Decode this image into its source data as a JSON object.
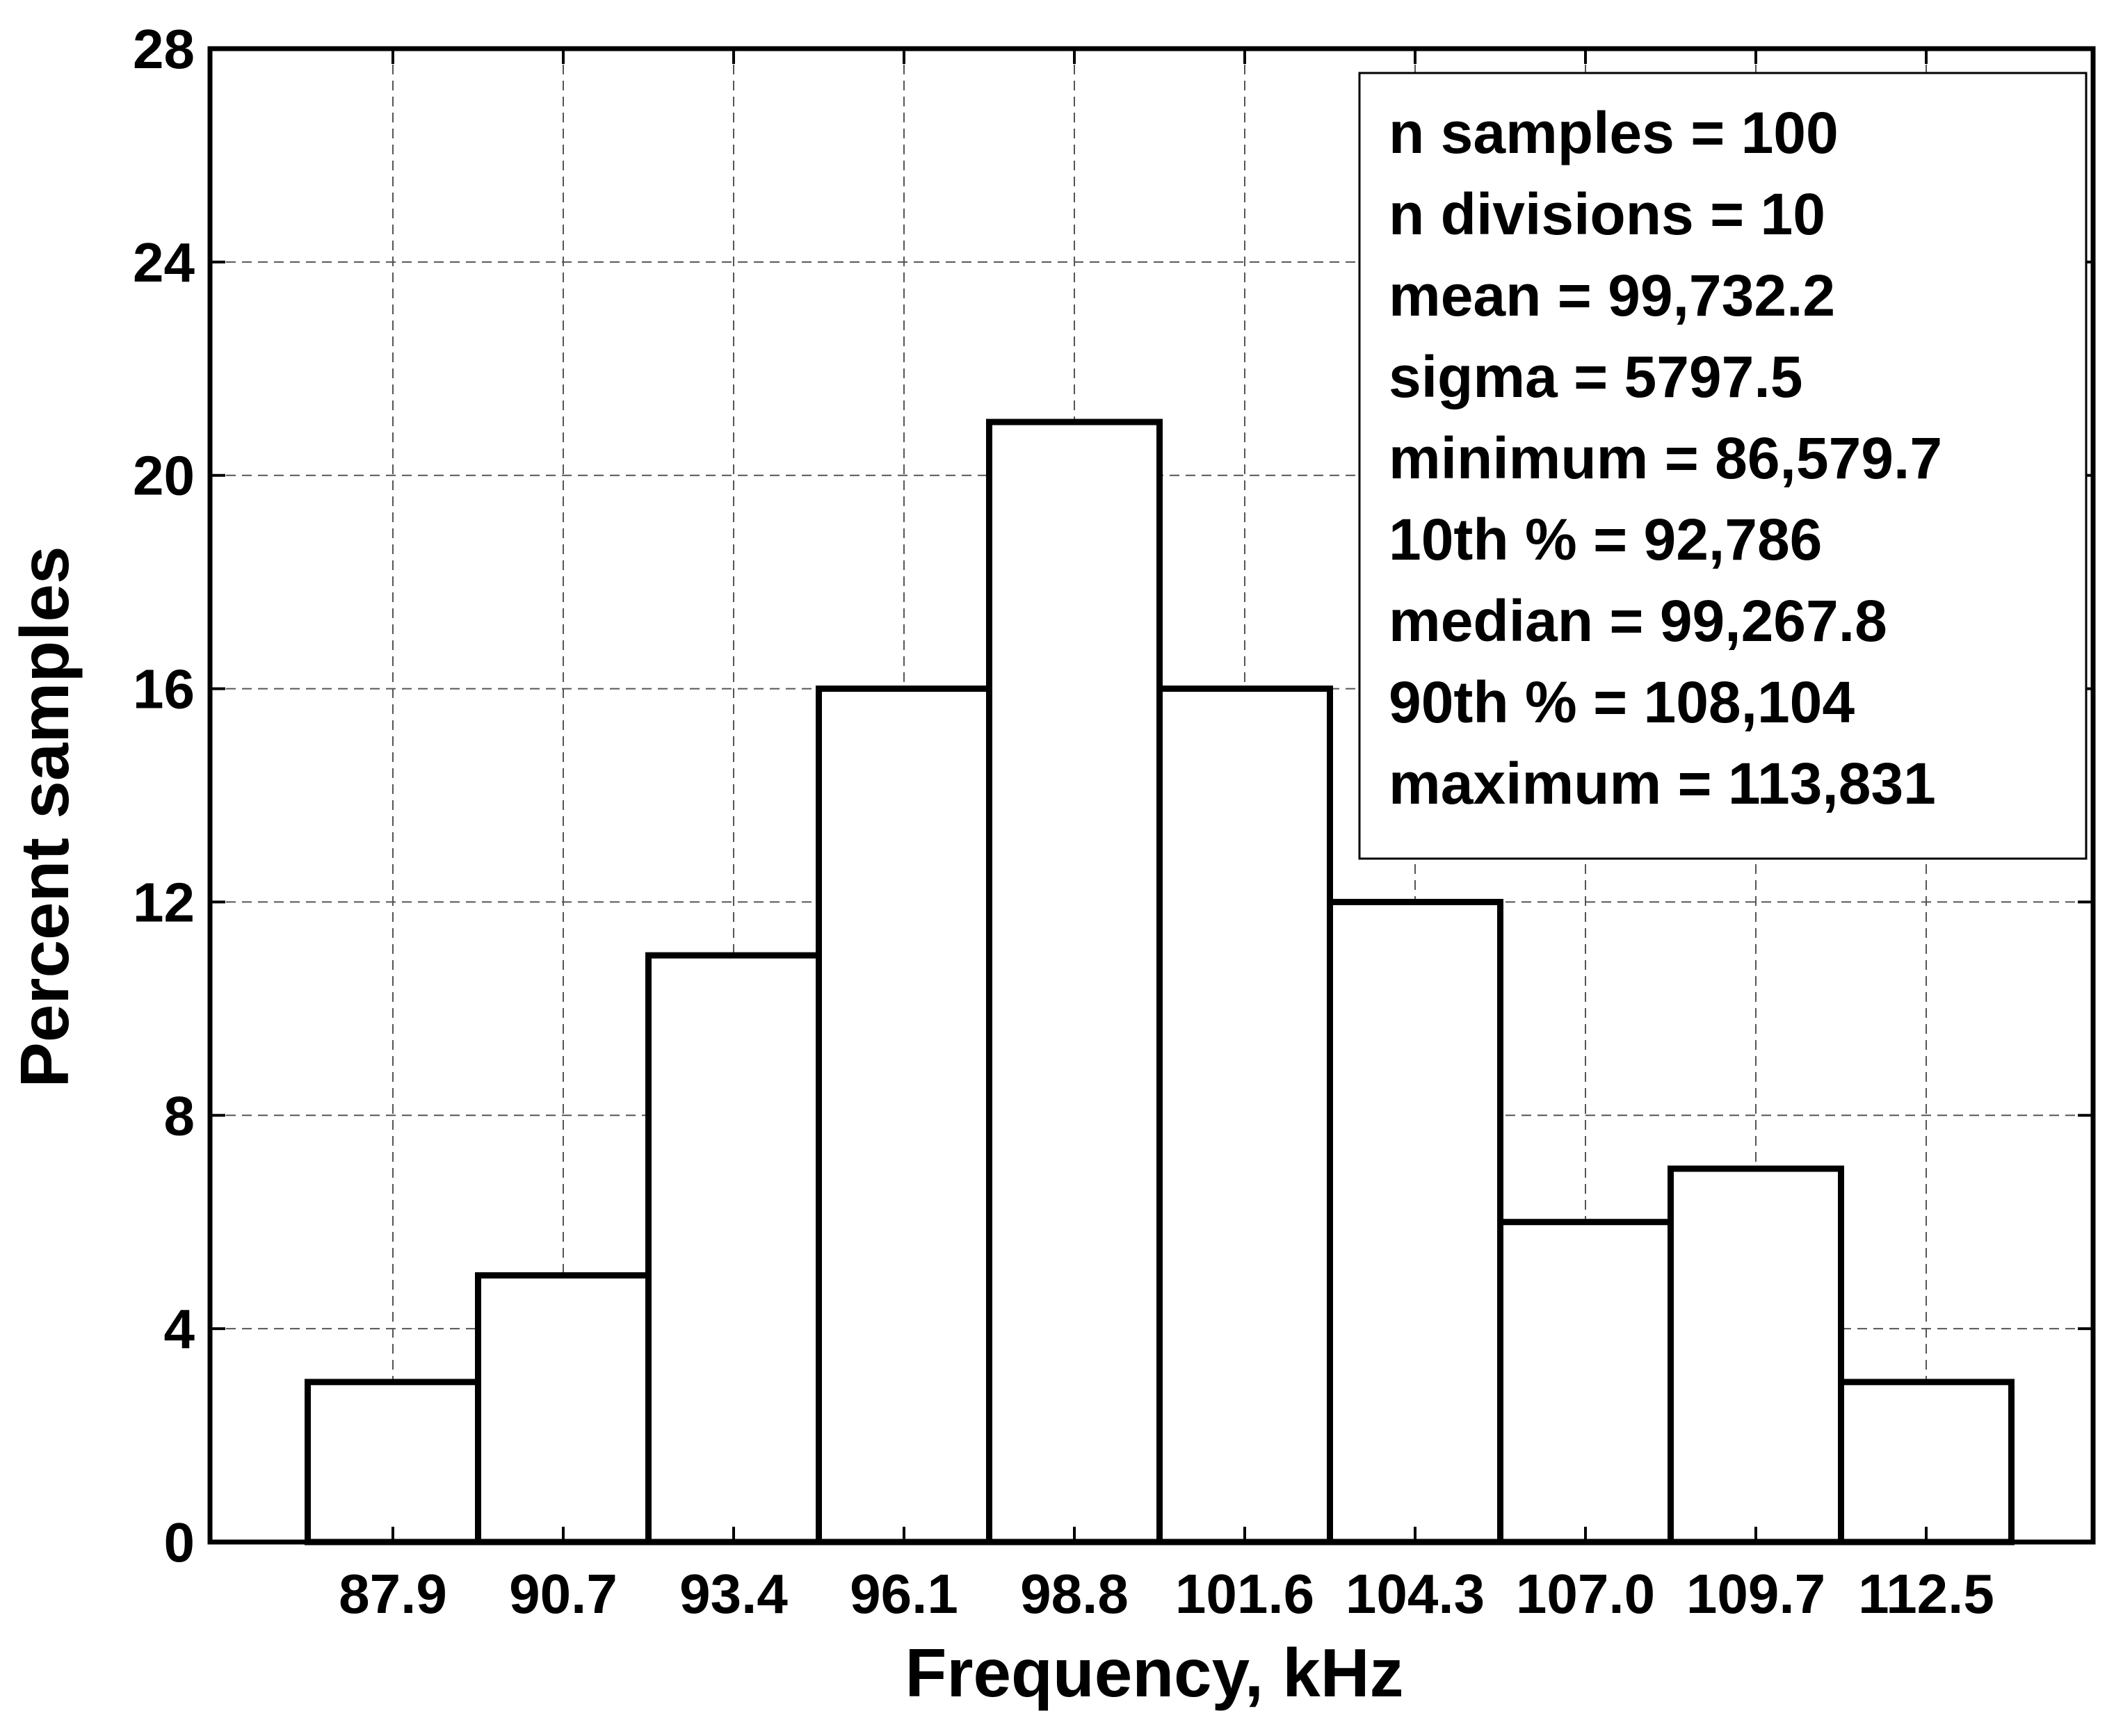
{
  "chart_data": {
    "type": "bar",
    "title": "",
    "xlabel": "Frequency, kHz",
    "ylabel": "Percent samples",
    "categories": [
      "87.9",
      "90.7",
      "93.4",
      "96.1",
      "98.8",
      "101.6",
      "104.3",
      "107.0",
      "109.7",
      "112.5"
    ],
    "values": [
      3,
      5,
      11,
      16,
      21,
      16,
      12,
      6,
      7,
      3
    ],
    "ylim": [
      0,
      28
    ],
    "yticks": [
      "0",
      "4",
      "8",
      "12",
      "16",
      "20",
      "24",
      "28"
    ],
    "grid": true,
    "bar_fill": "#ffffff",
    "bar_edge": "#000000",
    "stats_box": {
      "position": "top-right",
      "lines": [
        "n samples = 100",
        "n divisions = 10",
        "mean = 99,732.2",
        "sigma = 5797.5",
        "minimum = 86,579.7",
        "10th % = 92,786",
        "median = 99,267.8",
        "90th % = 108,104",
        "maximum = 113,831"
      ]
    }
  }
}
